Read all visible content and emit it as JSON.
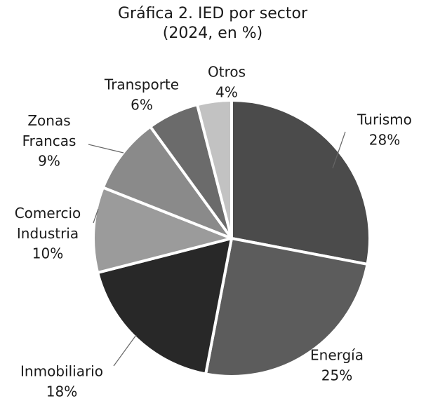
{
  "chart_data": {
    "type": "pie",
    "title": "Gráfica 2. IED por sector",
    "subtitle": "(2024, en %)",
    "categories": [
      "Turismo",
      "Energía",
      "Inmobiliario",
      "Comercio Industria",
      "Zonas Francas",
      "Transporte",
      "Otros"
    ],
    "values": [
      28,
      25,
      18,
      10,
      9,
      6,
      4
    ],
    "value_labels": [
      "28%",
      "25%",
      "18%",
      "10%",
      "9%",
      "6%",
      "4%"
    ],
    "colors": [
      "#4b4b4b",
      "#5c5c5c",
      "#282828",
      "#9b9b9b",
      "#8a8a8a",
      "#6b6b6b",
      "#c2c2c2"
    ]
  }
}
